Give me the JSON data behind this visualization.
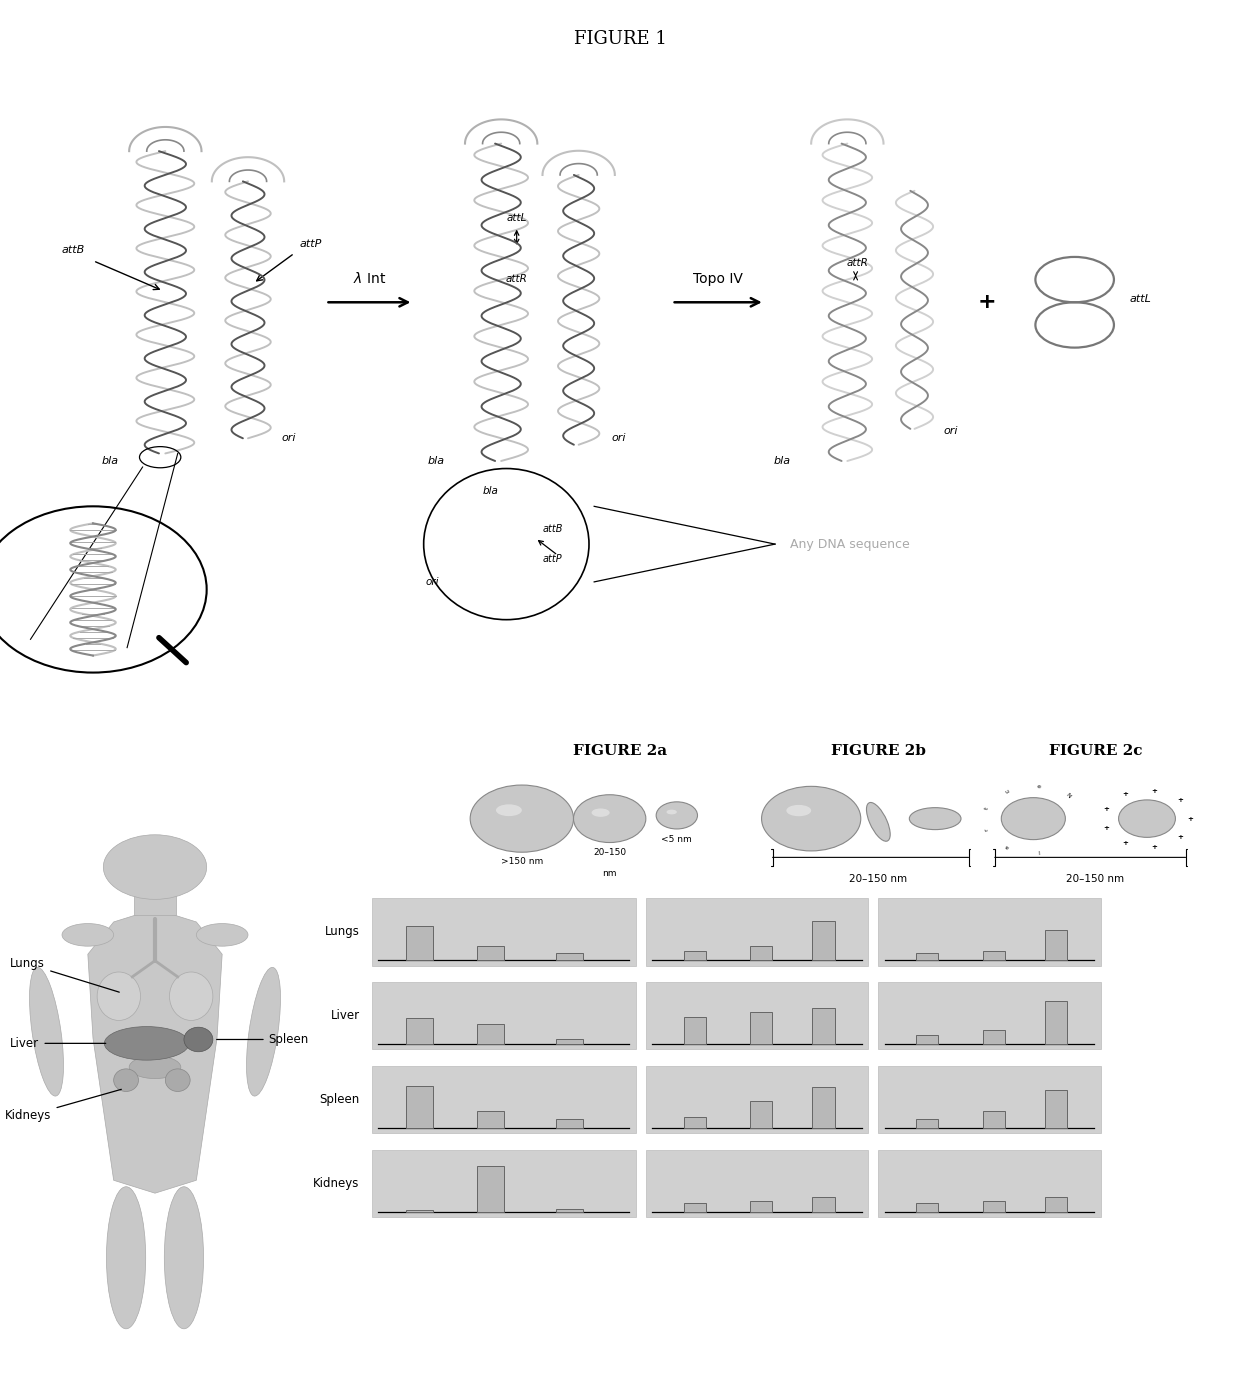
{
  "fig1_title": "FIGURE 1",
  "fig2a_title": "FIGURE 2a",
  "fig2b_title": "FIGURE 2b",
  "fig2c_title": "FIGURE 2c",
  "organs": [
    "Lungs",
    "Liver",
    "Spleen",
    "Kidneys"
  ],
  "fig2a_label0": ">150 nm",
  "fig2a_label1": "20–150",
  "fig2a_label2": "<5 nm",
  "fig2a_label3": "nm",
  "fig2b_label": "20–150 nm",
  "fig2c_label": "20–150 nm",
  "bar_data_2a": {
    "Lungs": [
      0.65,
      0.28,
      0.14
    ],
    "Liver": [
      0.5,
      0.38,
      0.1
    ],
    "Spleen": [
      0.8,
      0.32,
      0.18
    ],
    "Kidneys": [
      0.04,
      0.88,
      0.07
    ]
  },
  "bar_data_2b": {
    "Lungs": [
      0.18,
      0.28,
      0.75
    ],
    "Liver": [
      0.52,
      0.62,
      0.68
    ],
    "Spleen": [
      0.22,
      0.52,
      0.78
    ],
    "Kidneys": [
      0.18,
      0.22,
      0.28
    ]
  },
  "bar_data_2c": {
    "Lungs": [
      0.14,
      0.18,
      0.58
    ],
    "Liver": [
      0.18,
      0.28,
      0.82
    ],
    "Spleen": [
      0.18,
      0.32,
      0.72
    ],
    "Kidneys": [
      0.18,
      0.22,
      0.28
    ]
  },
  "bg_color": "#d0d0d0",
  "bar_face_color": "#b8b8b8",
  "bar_edge_color": "#666666",
  "white": "#ffffff",
  "black": "#000000",
  "light_gray": "#cccccc",
  "mid_gray": "#999999",
  "dark_gray": "#666666",
  "any_dna_color": "#aaaaaa"
}
